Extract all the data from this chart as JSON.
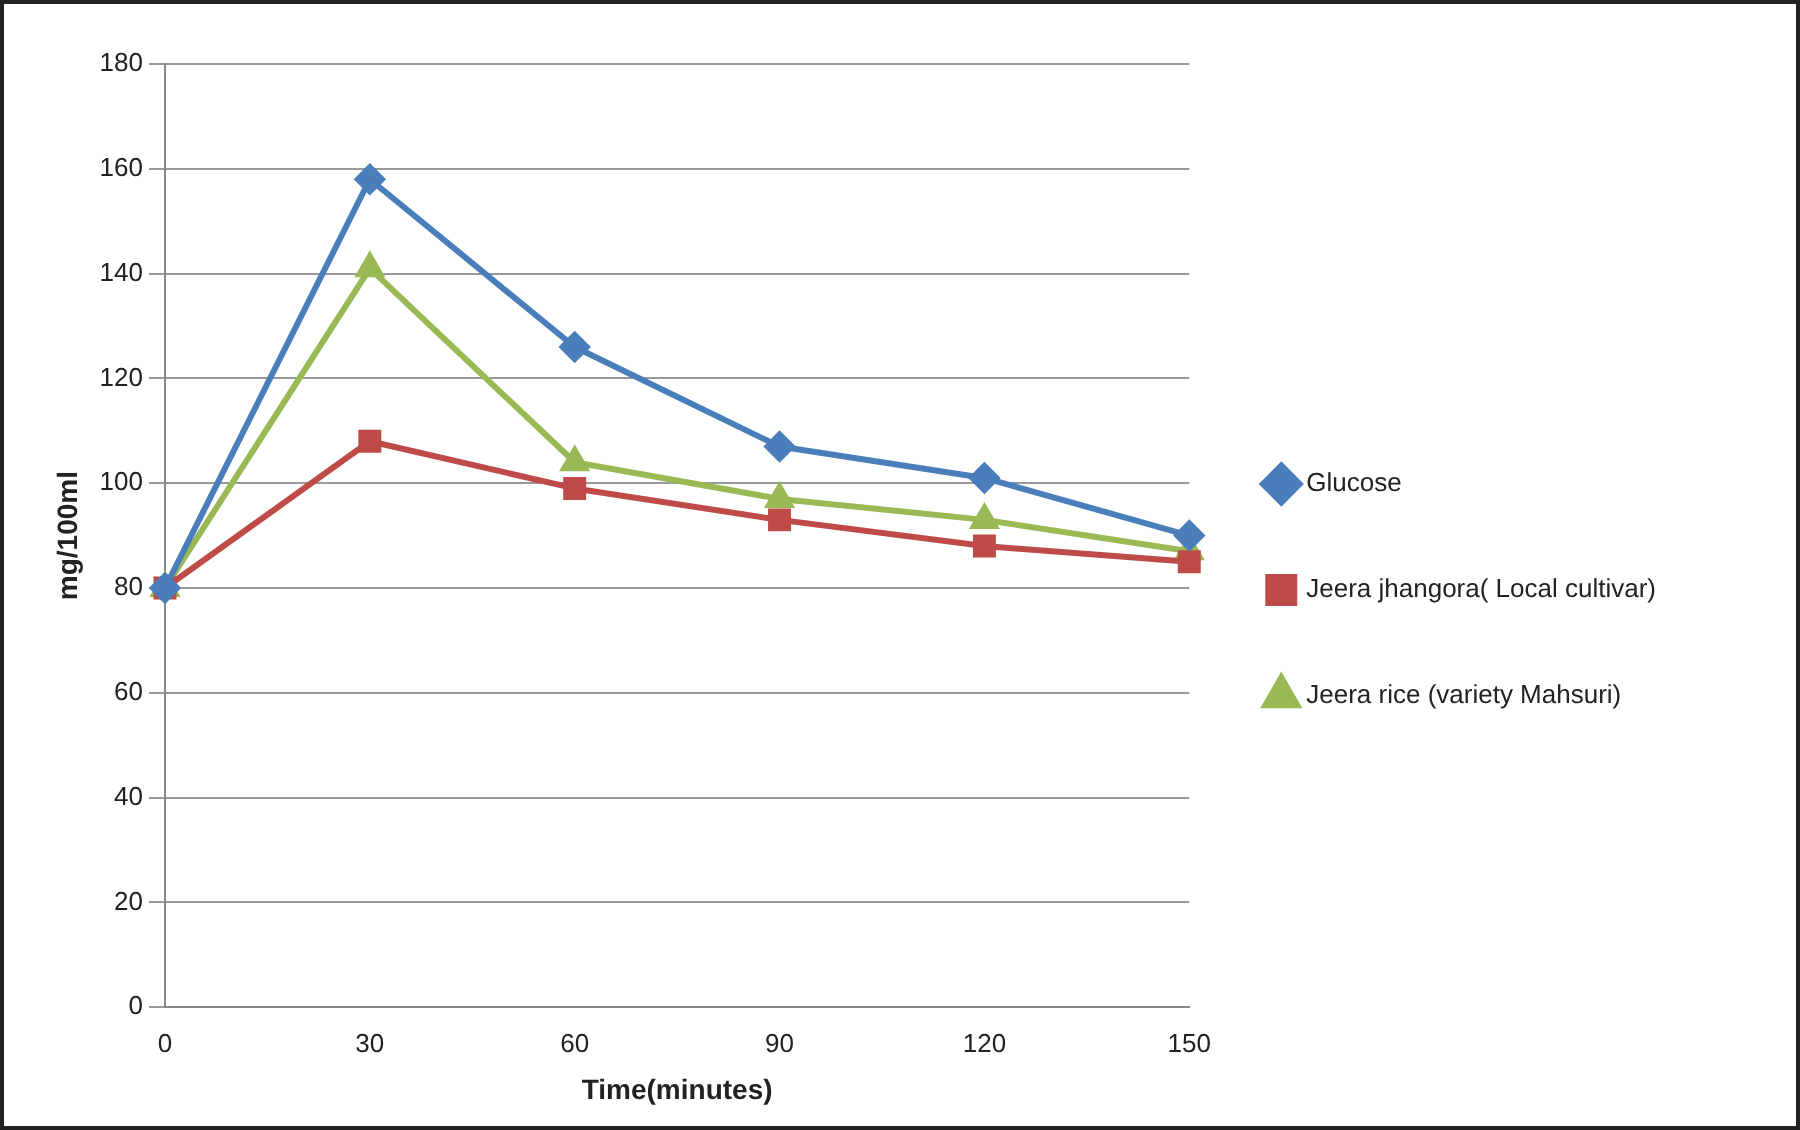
{
  "chart_data": {
    "type": "line",
    "xlabel": "Time(minutes)",
    "ylabel": "mg/100ml",
    "categories": [
      "0",
      "30",
      "60",
      "90",
      "120",
      "150"
    ],
    "ylim": [
      0,
      180
    ],
    "yticks": [
      0,
      20,
      40,
      60,
      80,
      100,
      120,
      140,
      160,
      180
    ],
    "grid": "y",
    "legend": "right",
    "line_style": "solid",
    "series": [
      {
        "name": "Glucose",
        "color": "#4a7ebb",
        "marker": "diamond",
        "values": [
          80,
          158,
          126,
          107,
          101,
          90
        ]
      },
      {
        "name": "Jeera jhangora( Local cultivar)",
        "color": "#be4b48",
        "marker": "square",
        "values": [
          80,
          108,
          99,
          93,
          88,
          85
        ]
      },
      {
        "name": "Jeera rice (variety Mahsuri)",
        "color": "#98b954",
        "marker": "triangle",
        "values": [
          80,
          141,
          104,
          97,
          93,
          87
        ]
      }
    ]
  }
}
